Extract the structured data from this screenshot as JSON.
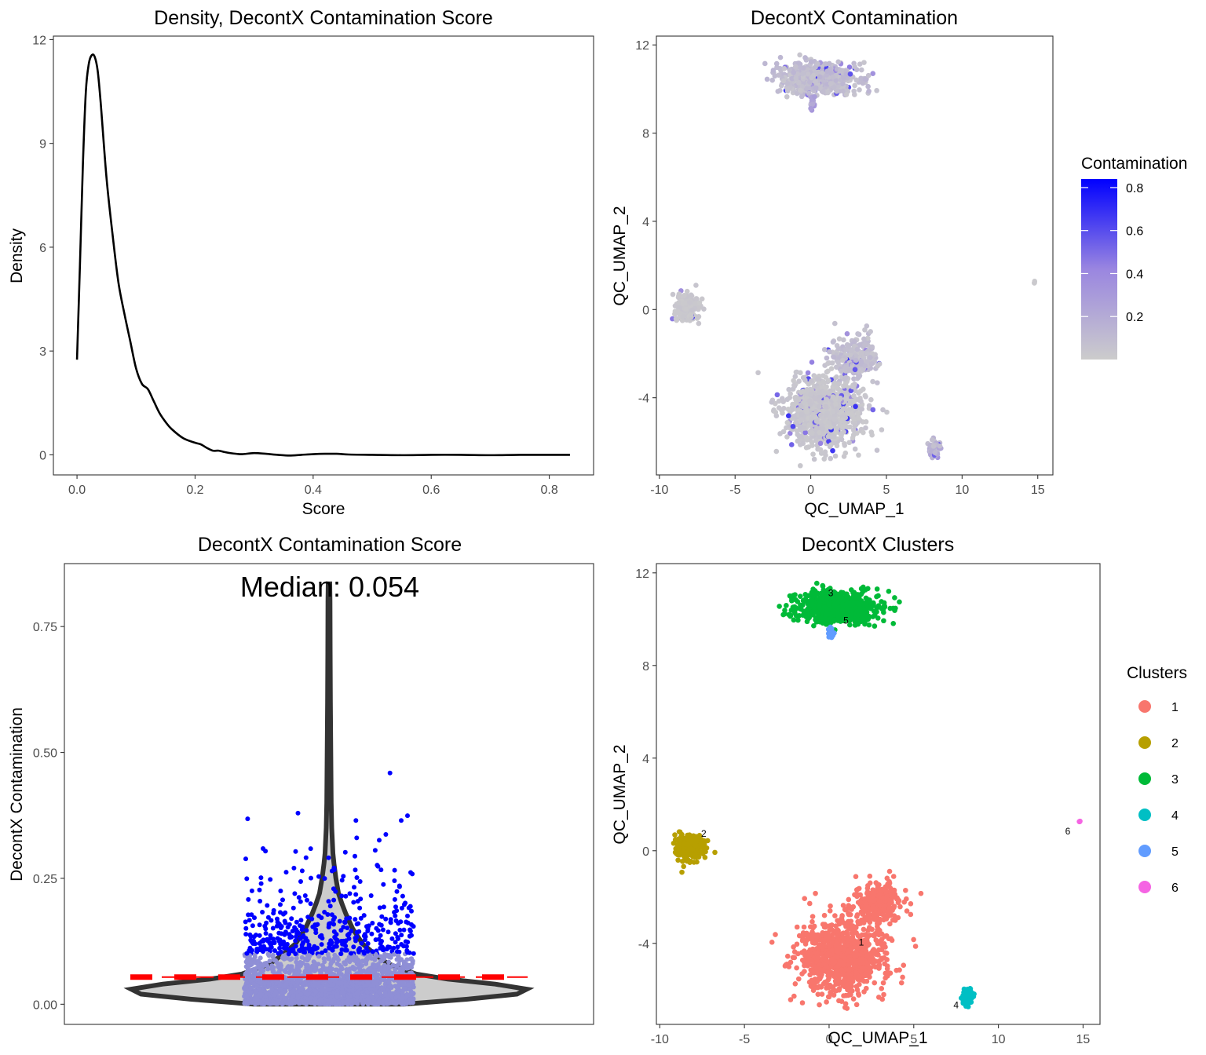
{
  "chart_data": [
    {
      "id": "density",
      "type": "line",
      "title": "Density, DecontX Contamination Score",
      "xlabel": "Score",
      "ylabel": "Density",
      "xlim": [
        -0.04,
        0.875
      ],
      "ylim": [
        -0.58,
        12.1
      ],
      "x_ticks": [
        0.0,
        0.2,
        0.4,
        0.6,
        0.8
      ],
      "x_tick_labels": [
        "0.0",
        "0.2",
        "0.4",
        "0.6",
        "0.8"
      ],
      "y_ticks": [
        0,
        3,
        6,
        9,
        12
      ],
      "y_tick_labels": [
        "0",
        "3",
        "6",
        "9",
        "12"
      ],
      "grid": false,
      "series": [
        {
          "color": "#000000",
          "x": [
            0.0,
            0.005,
            0.01,
            0.015,
            0.02,
            0.025,
            0.03,
            0.035,
            0.04,
            0.05,
            0.06,
            0.07,
            0.08,
            0.09,
            0.1,
            0.11,
            0.12,
            0.13,
            0.14,
            0.15,
            0.16,
            0.18,
            0.2,
            0.21,
            0.22,
            0.23,
            0.24,
            0.25,
            0.26,
            0.27,
            0.28,
            0.3,
            0.32,
            0.34,
            0.36,
            0.38,
            0.4,
            0.42,
            0.44,
            0.46,
            0.5,
            0.55,
            0.6,
            0.65,
            0.7,
            0.75,
            0.8,
            0.835
          ],
          "y": [
            2.75,
            5.5,
            8.4,
            10.5,
            11.3,
            11.55,
            11.5,
            11.1,
            10.2,
            8.0,
            6.4,
            5.0,
            4.1,
            3.3,
            2.5,
            2.05,
            1.9,
            1.55,
            1.2,
            0.95,
            0.75,
            0.48,
            0.35,
            0.3,
            0.2,
            0.12,
            0.12,
            0.08,
            0.05,
            0.03,
            0.02,
            0.05,
            0.03,
            0.0,
            -0.02,
            0.0,
            0.02,
            0.03,
            0.03,
            0.01,
            0.0,
            -0.01,
            0.0,
            0.0,
            -0.01,
            0.0,
            0.0,
            0.0
          ]
        }
      ]
    },
    {
      "id": "umap-contamination",
      "type": "scatter",
      "title": "DecontX Contamination",
      "xlabel": "QC_UMAP_1",
      "ylabel": "QC_UMAP_2",
      "xlim": [
        -10.2,
        16.0
      ],
      "ylim": [
        -7.5,
        12.4
      ],
      "x_ticks": [
        -10,
        -5,
        0,
        5,
        10,
        15
      ],
      "x_tick_labels": [
        "-10",
        "-5",
        "0",
        "5",
        "10",
        "15"
      ],
      "y_ticks": [
        -4,
        0,
        4,
        8,
        12
      ],
      "y_tick_labels": [
        "-4",
        "0",
        "4",
        "8",
        "12"
      ],
      "grid": false,
      "legend": {
        "title": "Contamination",
        "placement": "right",
        "type": "colorbar",
        "low_color": "#cccccc",
        "mid_color": "#9a86e0",
        "high_color": "#0000ff",
        "range": [
          0.0,
          0.84
        ],
        "ticks": [
          0.2,
          0.4,
          0.6,
          0.8
        ],
        "tick_labels": [
          "0.2",
          "0.4",
          "0.6",
          "0.8"
        ]
      },
      "groups": [
        {
          "cluster": "1",
          "cx": 0.8,
          "cy": -4.6,
          "rx": 2.3,
          "ry": 1.5,
          "n": 900,
          "color_value": 0.05
        },
        {
          "cluster": "1",
          "cx": 2.9,
          "cy": -2.2,
          "rx": 1.2,
          "ry": 0.8,
          "n": 260,
          "color_value": 0.1
        },
        {
          "cluster": "2",
          "cx": -8.2,
          "cy": 0.1,
          "rx": 0.8,
          "ry": 0.55,
          "n": 200,
          "color_value": 0.04
        },
        {
          "cluster": "3",
          "cx": 0.5,
          "cy": 10.5,
          "rx": 2.2,
          "ry": 0.6,
          "n": 650,
          "color_value": 0.12
        },
        {
          "cluster": "4",
          "cx": 8.2,
          "cy": -6.3,
          "rx": 0.35,
          "ry": 0.35,
          "n": 60,
          "color_value": 0.2
        },
        {
          "cluster": "5",
          "cx": 0.1,
          "cy": 9.4,
          "rx": 0.15,
          "ry": 0.3,
          "n": 20,
          "color_value": 0.3
        },
        {
          "cluster": "6",
          "cx": 14.8,
          "cy": 1.25,
          "rx": 0.05,
          "ry": 0.05,
          "n": 3,
          "color_value": 0.02
        }
      ]
    },
    {
      "id": "violin",
      "type": "violin",
      "title": "DecontX Contamination Score",
      "annotation": "Median: 0.054",
      "xlabel": "",
      "ylabel": "DecontX Contamination",
      "ylim": [
        -0.04,
        0.875
      ],
      "y_ticks": [
        0.0,
        0.25,
        0.5,
        0.75
      ],
      "y_tick_labels": [
        "0.00",
        "0.25",
        "0.50",
        "0.75"
      ],
      "grid": false,
      "median": 0.054,
      "median_line_color": "#ff0000",
      "outlier_threshold": 0.1,
      "inlier_color": "#8f8fd6",
      "outlier_color": "#0000ff",
      "violin_fill": "#cccccc",
      "violin_stroke": "#333333",
      "violin_profile": {
        "y": [
          0.0,
          0.01,
          0.02,
          0.03,
          0.04,
          0.05,
          0.06,
          0.08,
          0.1,
          0.12,
          0.15,
          0.18,
          0.2,
          0.22,
          0.25,
          0.28,
          0.3,
          0.35,
          0.4,
          0.5,
          0.6,
          0.7,
          0.8,
          0.835
        ],
        "half_width": [
          0.38,
          0.7,
          0.95,
          1.0,
          0.84,
          0.6,
          0.44,
          0.3,
          0.23,
          0.17,
          0.12,
          0.085,
          0.065,
          0.048,
          0.035,
          0.025,
          0.02,
          0.014,
          0.011,
          0.009,
          0.007,
          0.006,
          0.005,
          0.004
        ]
      },
      "n_points": 2200
    },
    {
      "id": "umap-clusters",
      "type": "scatter",
      "title": "DecontX Clusters",
      "xlabel": "QC_UMAP_1",
      "ylabel": "QC_UMAP_2",
      "xlim": [
        -10.2,
        16.0
      ],
      "ylim": [
        -7.5,
        12.4
      ],
      "x_ticks": [
        -10,
        -5,
        0,
        5,
        10,
        15
      ],
      "x_tick_labels": [
        "-10",
        "-5",
        "0",
        "5",
        "10",
        "15"
      ],
      "y_ticks": [
        -4,
        0,
        4,
        8,
        12
      ],
      "y_tick_labels": [
        "-4",
        "0",
        "4",
        "8",
        "12"
      ],
      "grid": false,
      "legend": {
        "title": "Clusters",
        "placement": "right",
        "entries": [
          {
            "label": "1",
            "color": "#f8766d"
          },
          {
            "label": "2",
            "color": "#b79f00"
          },
          {
            "label": "3",
            "color": "#00ba38"
          },
          {
            "label": "4",
            "color": "#00bfc4"
          },
          {
            "label": "5",
            "color": "#619cff"
          },
          {
            "label": "6",
            "color": "#f564e3"
          }
        ]
      },
      "cluster_labels": [
        {
          "text": "1",
          "x": 1.9,
          "y": -4.1
        },
        {
          "text": "2",
          "x": -7.4,
          "y": 0.6
        },
        {
          "text": "3",
          "x": 0.1,
          "y": 11.0
        },
        {
          "text": "4",
          "x": 7.5,
          "y": -6.8
        },
        {
          "text": "5",
          "x": 1.0,
          "y": 9.8
        },
        {
          "text": "6",
          "x": 14.1,
          "y": 0.7
        }
      ]
    }
  ]
}
